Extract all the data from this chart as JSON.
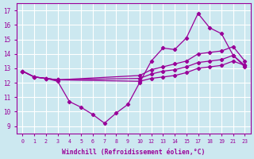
{
  "xlabel": "Windchill (Refroidissement éolien,°C)",
  "bg_color": "#cce8f0",
  "line_color": "#990099",
  "grid_color": "#ffffff",
  "xtick_labels": [
    "0",
    "1",
    "2",
    "3",
    "4",
    "5",
    "6",
    "7",
    "8",
    "9",
    "10",
    "12",
    "13",
    "14",
    "15",
    "17",
    "18",
    "19",
    "21",
    "23"
  ],
  "yticks": [
    9,
    10,
    11,
    12,
    13,
    14,
    15,
    16,
    17
  ],
  "ylim": [
    8.5,
    17.5
  ],
  "series": [
    {
      "xi": [
        0,
        1,
        2,
        3,
        4,
        5,
        6,
        7,
        8,
        9,
        10,
        11,
        12,
        13,
        14,
        15,
        16,
        17,
        18,
        19
      ],
      "y": [
        12.8,
        12.4,
        12.3,
        12.1,
        10.7,
        10.3,
        9.8,
        9.2,
        9.9,
        10.5,
        12.0,
        13.5,
        14.4,
        14.3,
        15.1,
        16.8,
        15.8,
        15.4,
        13.9,
        13.1
      ]
    },
    {
      "xi": [
        0,
        1,
        2,
        3,
        10,
        11,
        12,
        13,
        14,
        15,
        16,
        17,
        18,
        19
      ],
      "y": [
        12.8,
        12.4,
        12.3,
        12.2,
        12.1,
        12.3,
        12.4,
        12.5,
        12.7,
        13.0,
        13.1,
        13.2,
        13.5,
        13.2
      ]
    },
    {
      "xi": [
        0,
        1,
        2,
        3,
        10,
        11,
        12,
        13,
        14,
        15,
        16,
        17,
        18,
        19
      ],
      "y": [
        12.8,
        12.4,
        12.3,
        12.2,
        12.5,
        12.9,
        13.1,
        13.3,
        13.5,
        14.0,
        14.1,
        14.2,
        14.5,
        13.5
      ]
    },
    {
      "xi": [
        0,
        1,
        2,
        3,
        10,
        11,
        12,
        13,
        14,
        15,
        16,
        17,
        18,
        19
      ],
      "y": [
        12.8,
        12.4,
        12.3,
        12.2,
        12.3,
        12.6,
        12.8,
        12.9,
        13.1,
        13.4,
        13.5,
        13.6,
        13.9,
        13.2
      ]
    }
  ]
}
